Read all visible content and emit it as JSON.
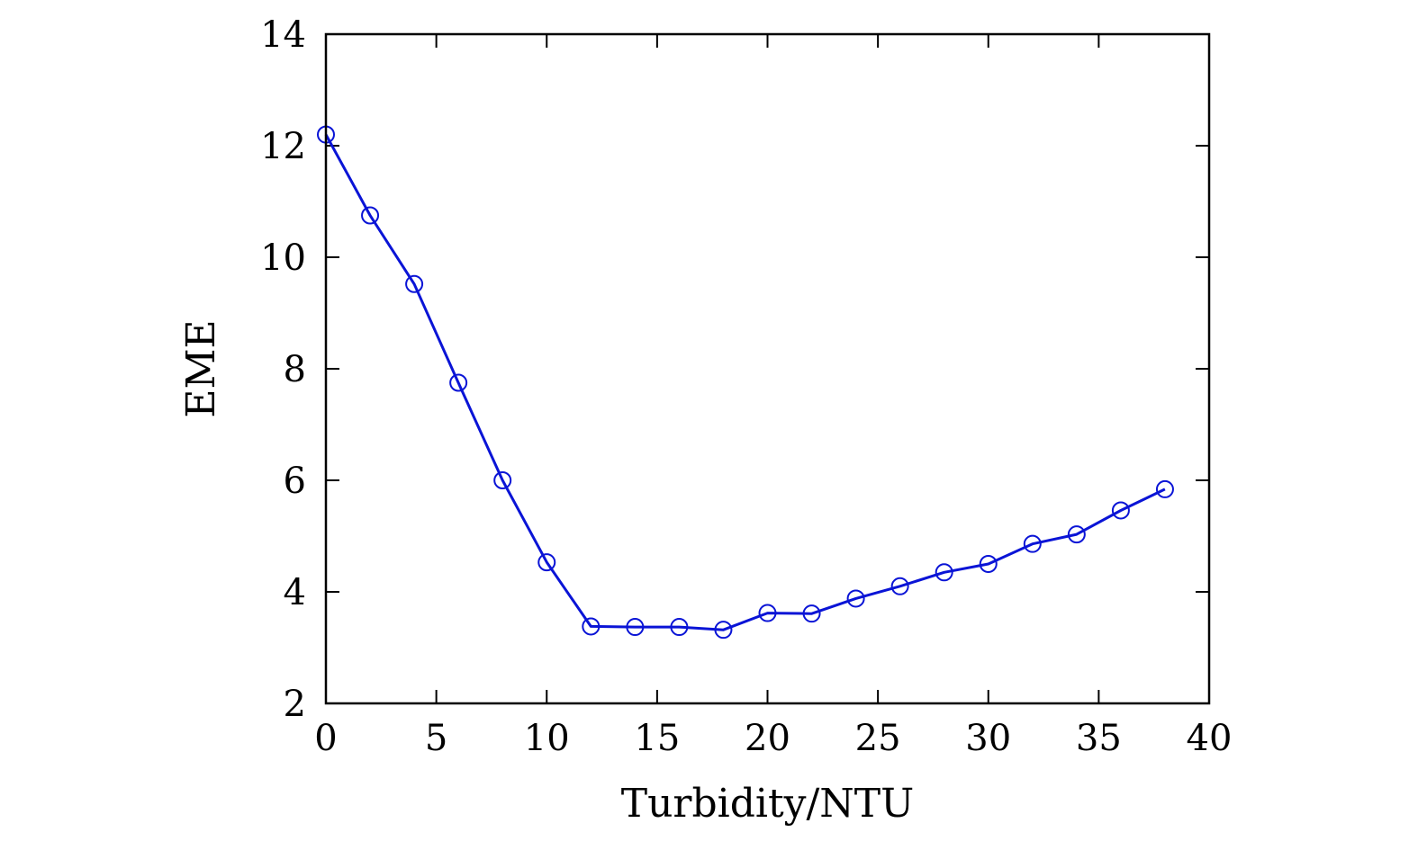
{
  "chart_data": {
    "type": "line",
    "title": "",
    "xlabel": "Turbidity/NTU",
    "ylabel": "EME",
    "xlim": [
      0,
      40
    ],
    "ylim": [
      2,
      14
    ],
    "xticks": [
      0,
      5,
      10,
      15,
      20,
      25,
      30,
      35,
      40
    ],
    "yticks": [
      2,
      4,
      6,
      8,
      10,
      12,
      14
    ],
    "grid": false,
    "legend": "none",
    "series": [
      {
        "color": "#0a14d6",
        "marker": "open-circle",
        "x": [
          0,
          2,
          4,
          6,
          8,
          10,
          12,
          14,
          16,
          18,
          20,
          22,
          24,
          26,
          28,
          30,
          32,
          34,
          36,
          38
        ],
        "y": [
          12.2,
          10.75,
          9.52,
          7.75,
          6.0,
          4.53,
          3.38,
          3.37,
          3.37,
          3.32,
          3.62,
          3.61,
          3.88,
          4.1,
          4.35,
          4.5,
          4.86,
          5.03,
          5.46,
          5.84
        ]
      }
    ]
  }
}
